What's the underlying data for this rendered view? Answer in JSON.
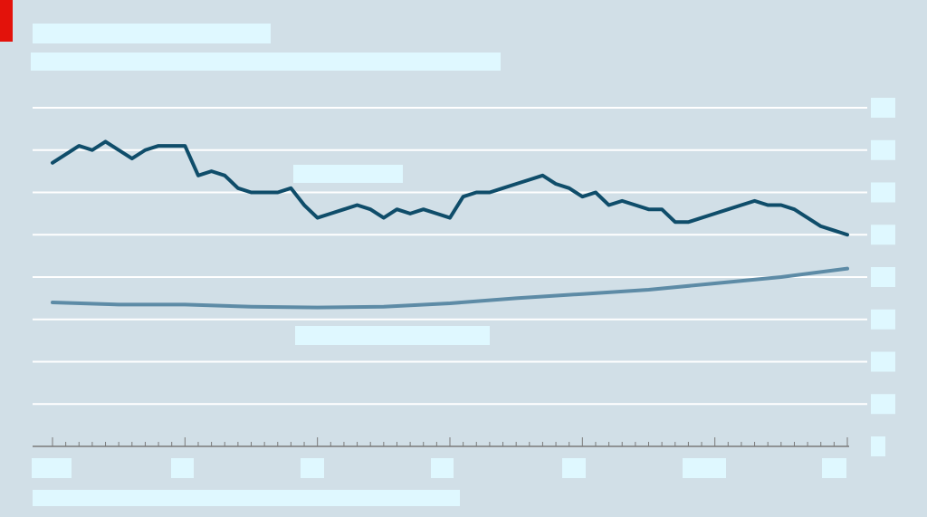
{
  "header": {
    "accent_color": "#e3120b",
    "title": "",
    "subtitle": ""
  },
  "footer": {
    "source": ""
  },
  "chart_data": {
    "type": "line",
    "title": "",
    "subtitle": "",
    "xlabel": "",
    "ylabel": "",
    "x_range": [
      0,
      60
    ],
    "ylim": [
      0,
      8
    ],
    "y_ticks": [
      "",
      "",
      "",
      "",
      "",
      "",
      "",
      "",
      ""
    ],
    "x_tick_labels": [
      "",
      "",
      "",
      "",
      "",
      "",
      ""
    ],
    "grid": true,
    "legend": "none",
    "colors": {
      "background": "#d1dfe7",
      "series_dark": "#0f4d6a",
      "series_light": "#5d8ba6",
      "grid": "#ffffff",
      "axis": "#7a7a7a"
    },
    "series": [
      {
        "label": "",
        "color": "#0f4d6a",
        "x": [
          0,
          1,
          2,
          3,
          4,
          5,
          6,
          7,
          8,
          9,
          10,
          11,
          12,
          13,
          14,
          15,
          16,
          17,
          18,
          19,
          20,
          21,
          22,
          23,
          24,
          25,
          26,
          27,
          28,
          29,
          30,
          31,
          32,
          33,
          34,
          35,
          36,
          37,
          38,
          39,
          40,
          41,
          42,
          43,
          44,
          45,
          46,
          47,
          48,
          49,
          50,
          51,
          52,
          53,
          54,
          55,
          56,
          57,
          58,
          59,
          60
        ],
        "values": [
          6.7,
          6.9,
          7.1,
          7.0,
          7.2,
          7.0,
          6.8,
          7.0,
          7.1,
          7.1,
          7.1,
          6.4,
          6.5,
          6.4,
          6.1,
          6.0,
          6.0,
          6.0,
          6.1,
          5.7,
          5.4,
          5.5,
          5.6,
          5.7,
          5.6,
          5.4,
          5.6,
          5.5,
          5.6,
          5.5,
          5.4,
          5.9,
          6.0,
          6.0,
          6.1,
          6.2,
          6.3,
          6.4,
          6.2,
          6.1,
          5.9,
          6.0,
          5.7,
          5.8,
          5.7,
          5.6,
          5.6,
          5.3,
          5.3,
          5.4,
          5.5,
          5.6,
          5.7,
          5.8,
          5.7,
          5.7,
          5.6,
          5.4,
          5.2,
          5.1,
          5.0
        ]
      },
      {
        "label": "",
        "color": "#5d8ba6",
        "x": [
          0,
          5,
          10,
          15,
          20,
          25,
          30,
          35,
          40,
          45,
          50,
          55,
          60
        ],
        "values": [
          3.4,
          3.35,
          3.35,
          3.3,
          3.28,
          3.3,
          3.38,
          3.5,
          3.6,
          3.7,
          3.85,
          4.0,
          4.2
        ]
      }
    ]
  }
}
